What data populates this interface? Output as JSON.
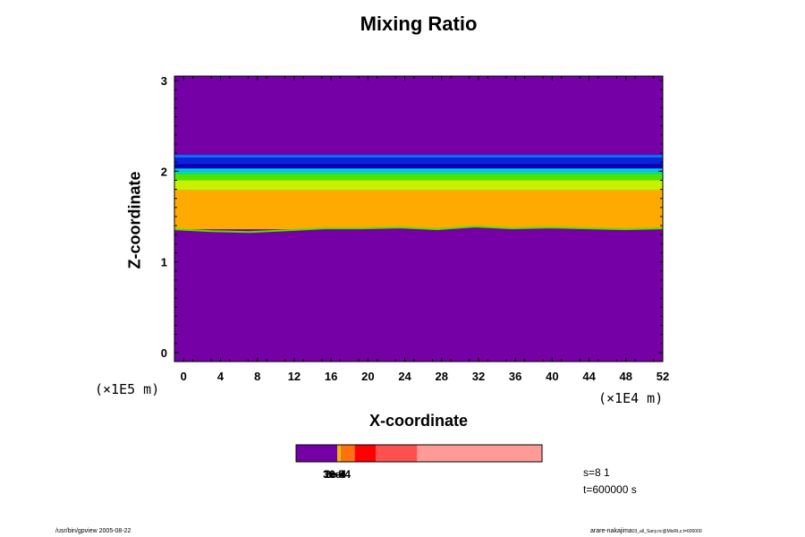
{
  "chart_data": {
    "type": "heatmap",
    "title": "Mixing Ratio",
    "xlabel": "X-coordinate",
    "ylabel": "Z-coordinate",
    "x_scale_label": "(×1E4 m)",
    "y_scale_label": "(×1E5 m)",
    "xlim": [
      -1,
      52
    ],
    "ylim": [
      -0.1,
      3.05
    ],
    "x_ticks": [
      "0",
      "4",
      "8",
      "12",
      "16",
      "20",
      "24",
      "28",
      "32",
      "36",
      "40",
      "44",
      "48",
      "52"
    ],
    "y_ticks": [
      "0",
      "1",
      "2",
      "3"
    ],
    "background_color": "#7400a6",
    "bands": [
      {
        "z_bottom": 2.15,
        "z_top": 2.18,
        "color": "#0073ff"
      },
      {
        "z_bottom": 2.08,
        "z_top": 2.15,
        "color": "#0b23d9"
      },
      {
        "z_bottom": 2.03,
        "z_top": 2.08,
        "color": "#0a00b4"
      },
      {
        "z_bottom": 2.0,
        "z_top": 2.03,
        "color": "#00c8ff"
      },
      {
        "z_bottom": 1.97,
        "z_top": 2.0,
        "color": "#00e19b"
      },
      {
        "z_bottom": 1.9,
        "z_top": 1.97,
        "color": "#4ee400"
      },
      {
        "z_bottom": 1.79,
        "z_top": 1.9,
        "color": "#c8f000"
      },
      {
        "z_bottom": 1.36,
        "z_top": 1.79,
        "color": "#ffaa00"
      }
    ],
    "lower_boundary_z": [
      1.36,
      1.34,
      1.33,
      1.35,
      1.37,
      1.37,
      1.38,
      1.36,
      1.39,
      1.37,
      1.38,
      1.37,
      1.36,
      1.37
    ],
    "colorbar": {
      "segments": [
        {
          "color": "#7400a6",
          "value": 0.165
        },
        {
          "color": "#f0b400",
          "value": 0.0075
        },
        {
          "color": "#ffaa00",
          "value": 0.0075
        },
        {
          "color": "#b37800",
          "value": 0.005
        },
        {
          "color": "#ff7010",
          "value": 0.05
        },
        {
          "color": "#ff0000",
          "value": 0.085
        },
        {
          "color": "#ff5050",
          "value": 0.165
        },
        {
          "color": "#ff9b96",
          "value": 0.5
        }
      ],
      "labels": [
        "3e-5",
        "1e-4",
        "2e-4",
        "6e-4"
      ]
    },
    "annotation_lines": [
      "s=8 1",
      "t=600000 s"
    ]
  },
  "footer": {
    "left": "/usr/bin/gpview 2005-08-22",
    "right_user": "arare-nakajima",
    "right_file": "03_all_Sany.nc@MixRt,z,t=600000"
  }
}
